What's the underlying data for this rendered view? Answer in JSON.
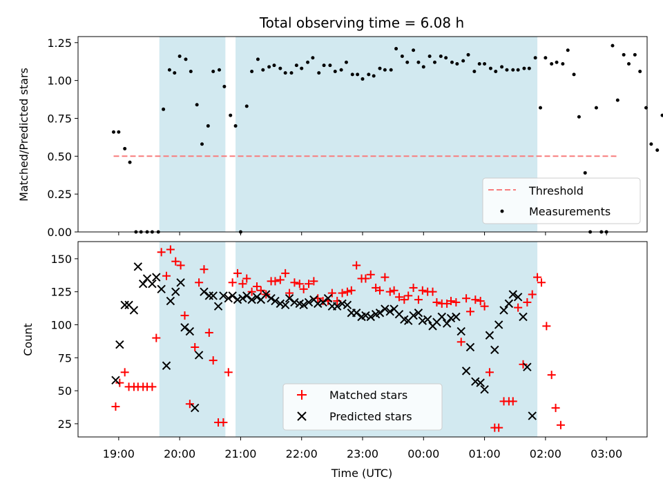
{
  "title": "Total observing time = 6.08 h",
  "chart_data": [
    {
      "type": "scatter",
      "ylabel": "Matched/Predicted stars",
      "ylim": [
        0,
        1.29
      ],
      "yticks": [
        "0.00",
        "0.25",
        "0.50",
        "0.75",
        "1.00",
        "1.25"
      ],
      "threshold": {
        "name": "Threshold",
        "value": 0.5,
        "x_start": "18:55",
        "x_end": "03:10",
        "color": "#f87c7c"
      },
      "measurements": {
        "name": "Measurements",
        "color": "#000000",
        "points": [
          [
            "18:55",
            0.66
          ],
          [
            "19:00",
            0.66
          ],
          [
            "19:06",
            0.55
          ],
          [
            "19:11",
            0.46
          ],
          [
            "19:17",
            0.0
          ],
          [
            "19:22",
            0.0
          ],
          [
            "19:28",
            0.0
          ],
          [
            "19:33",
            0.0
          ],
          [
            "19:39",
            0.0
          ],
          [
            "19:44",
            0.81
          ],
          [
            "19:50",
            1.07
          ],
          [
            "19:55",
            1.05
          ],
          [
            "20:00",
            1.16
          ],
          [
            "20:06",
            1.14
          ],
          [
            "20:11",
            1.06
          ],
          [
            "20:17",
            0.84
          ],
          [
            "20:22",
            0.58
          ],
          [
            "20:28",
            0.7
          ],
          [
            "20:33",
            1.06
          ],
          [
            "20:39",
            1.07
          ],
          [
            "20:44",
            0.96
          ],
          [
            "20:50",
            0.77
          ],
          [
            "20:55",
            0.7
          ],
          [
            "21:00",
            0.0
          ],
          [
            "21:06",
            0.83
          ],
          [
            "21:11",
            1.06
          ],
          [
            "21:17",
            1.14
          ],
          [
            "21:22",
            1.07
          ],
          [
            "21:28",
            1.09
          ],
          [
            "21:33",
            1.1
          ],
          [
            "21:39",
            1.08
          ],
          [
            "21:44",
            1.05
          ],
          [
            "21:50",
            1.05
          ],
          [
            "21:55",
            1.1
          ],
          [
            "22:00",
            1.08
          ],
          [
            "22:06",
            1.12
          ],
          [
            "22:11",
            1.15
          ],
          [
            "22:17",
            1.05
          ],
          [
            "22:22",
            1.1
          ],
          [
            "22:28",
            1.1
          ],
          [
            "22:33",
            1.06
          ],
          [
            "22:39",
            1.07
          ],
          [
            "22:44",
            1.12
          ],
          [
            "22:50",
            1.04
          ],
          [
            "22:55",
            1.04
          ],
          [
            "23:00",
            1.01
          ],
          [
            "23:06",
            1.04
          ],
          [
            "23:11",
            1.03
          ],
          [
            "23:17",
            1.08
          ],
          [
            "23:22",
            1.07
          ],
          [
            "23:28",
            1.07
          ],
          [
            "23:33",
            1.21
          ],
          [
            "23:39",
            1.16
          ],
          [
            "23:44",
            1.12
          ],
          [
            "23:50",
            1.2
          ],
          [
            "23:55",
            1.12
          ],
          [
            "00:00",
            1.09
          ],
          [
            "00:06",
            1.16
          ],
          [
            "00:11",
            1.12
          ],
          [
            "00:17",
            1.16
          ],
          [
            "00:22",
            1.15
          ],
          [
            "00:28",
            1.12
          ],
          [
            "00:33",
            1.11
          ],
          [
            "00:39",
            1.13
          ],
          [
            "00:44",
            1.17
          ],
          [
            "00:50",
            1.06
          ],
          [
            "00:55",
            1.11
          ],
          [
            "01:00",
            1.11
          ],
          [
            "01:06",
            1.08
          ],
          [
            "01:11",
            1.06
          ],
          [
            "01:17",
            1.09
          ],
          [
            "01:22",
            1.07
          ],
          [
            "01:28",
            1.07
          ],
          [
            "01:33",
            1.07
          ],
          [
            "01:39",
            1.08
          ],
          [
            "01:44",
            1.08
          ],
          [
            "01:50",
            1.15
          ],
          [
            "01:55",
            0.82
          ],
          [
            "02:00",
            1.15
          ],
          [
            "02:06",
            1.11
          ],
          [
            "02:11",
            1.12
          ],
          [
            "02:17",
            1.11
          ],
          [
            "02:22",
            1.2
          ],
          [
            "02:28",
            1.04
          ],
          [
            "02:33",
            0.76
          ],
          [
            "02:39",
            0.39
          ],
          [
            "02:44",
            0.0
          ],
          [
            "02:50",
            0.82
          ],
          [
            "02:55",
            0.0
          ],
          [
            "03:00",
            0.0
          ],
          [
            "03:06",
            1.23
          ],
          [
            "03:11",
            0.87
          ],
          [
            "03:17",
            1.17
          ],
          [
            "03:22",
            1.11
          ],
          [
            "03:28",
            1.17
          ],
          [
            "03:33",
            1.06
          ],
          [
            "03:39",
            0.82
          ],
          [
            "03:44",
            0.58
          ],
          [
            "03:50",
            0.54
          ],
          [
            "03:55",
            0.77
          ]
        ]
      },
      "legend": {
        "placement": "lower right",
        "entries": [
          "Threshold",
          "Measurements"
        ]
      }
    },
    {
      "type": "scatter",
      "xlabel": "Time (UTC)",
      "ylabel": "Count",
      "ylim": [
        15,
        163
      ],
      "yticks": [
        "25",
        "50",
        "75",
        "100",
        "125",
        "150"
      ],
      "xticks": [
        "19:00",
        "20:00",
        "21:00",
        "22:00",
        "23:00",
        "00:00",
        "01:00",
        "02:00",
        "03:00"
      ],
      "series": [
        {
          "name": "Matched stars",
          "marker": "plus",
          "color": "#ff0000",
          "values": [
            38,
            56,
            64,
            53,
            53,
            53,
            53,
            53,
            53,
            90,
            155,
            137,
            157,
            148,
            145,
            107,
            40,
            83,
            132,
            142,
            94,
            73,
            26,
            26,
            64,
            132,
            139,
            131,
            135,
            125,
            129,
            126,
            123,
            133,
            133,
            134,
            139,
            124,
            132,
            131,
            127,
            131,
            133,
            120,
            118,
            118,
            124,
            118,
            124,
            125,
            126,
            145,
            135,
            135,
            138,
            128,
            126,
            136,
            125,
            126,
            121,
            119,
            122,
            128,
            119,
            126,
            125,
            125,
            117,
            116,
            116,
            118,
            117,
            87,
            120,
            110,
            119,
            118,
            114,
            64,
            22,
            22,
            42,
            42,
            42,
            113,
            70,
            117,
            123,
            136,
            132,
            99,
            62,
            37,
            24
          ]
        },
        {
          "name": "Predicted stars",
          "marker": "x",
          "color": "#000000",
          "values": [
            58,
            85,
            115,
            115,
            111,
            144,
            131,
            135,
            131,
            136,
            127,
            69,
            118,
            125,
            132,
            98,
            95,
            37,
            77,
            125,
            122,
            122,
            114,
            122,
            120,
            122,
            119,
            120,
            122,
            119,
            121,
            119,
            123,
            120,
            118,
            116,
            115,
            120,
            117,
            116,
            115,
            117,
            119,
            116,
            117,
            120,
            114,
            114,
            116,
            115,
            109,
            109,
            106,
            107,
            106,
            108,
            109,
            112,
            110,
            112,
            108,
            104,
            103,
            107,
            109,
            103,
            104,
            99,
            102,
            106,
            101,
            105,
            106,
            95,
            65,
            83,
            57,
            56,
            51,
            92,
            81,
            100,
            111,
            116,
            123,
            121,
            106,
            68,
            31
          ]
        }
      ],
      "series_x": [
        [
          "18:57",
          "19:01",
          "19:06",
          "19:10",
          "19:15",
          "19:19",
          "19:24",
          "19:28",
          "19:33",
          "19:37",
          "19:42",
          "19:47",
          "19:51",
          "19:56",
          "20:01",
          "20:05",
          "20:10",
          "20:15",
          "20:19",
          "20:24",
          "20:29",
          "20:33",
          "20:38",
          "20:43",
          "20:48",
          "20:52",
          "20:57",
          "21:02",
          "21:06",
          "21:11",
          "21:16",
          "21:20",
          "21:25",
          "21:30",
          "21:34",
          "21:39",
          "21:44",
          "21:48",
          "21:53",
          "21:58",
          "22:02",
          "22:07",
          "22:12",
          "22:16",
          "22:21",
          "22:26",
          "22:30",
          "22:35",
          "22:40",
          "22:45",
          "22:49",
          "22:54",
          "22:59",
          "23:03",
          "23:08",
          "23:13",
          "23:17",
          "23:22",
          "23:27",
          "23:31",
          "23:36",
          "23:41",
          "23:45",
          "23:50",
          "23:55",
          "23:59",
          "00:04",
          "00:09",
          "00:13",
          "00:18",
          "00:23",
          "00:27",
          "00:32",
          "00:37",
          "00:42",
          "00:46",
          "00:51",
          "00:56",
          "01:00",
          "01:05",
          "01:10",
          "01:14",
          "01:19",
          "01:24",
          "01:28",
          "01:33",
          "01:38",
          "01:42",
          "01:47",
          "01:52",
          "01:56",
          "02:01",
          "02:06",
          "02:10",
          "02:15"
        ],
        [
          "18:57",
          "19:01",
          "19:06",
          "19:10",
          "19:15",
          "19:19",
          "19:24",
          "19:28",
          "19:33",
          "19:37",
          "19:42",
          "19:47",
          "19:51",
          "19:56",
          "20:01",
          "20:05",
          "20:10",
          "20:15",
          "20:19",
          "20:24",
          "20:29",
          "20:33",
          "20:38",
          "20:43",
          "20:48",
          "20:52",
          "20:57",
          "21:02",
          "21:06",
          "21:11",
          "21:16",
          "21:20",
          "21:25",
          "21:30",
          "21:34",
          "21:39",
          "21:44",
          "21:48",
          "21:53",
          "21:58",
          "22:02",
          "22:07",
          "22:12",
          "22:16",
          "22:21",
          "22:26",
          "22:30",
          "22:35",
          "22:40",
          "22:45",
          "22:49",
          "22:54",
          "22:59",
          "23:03",
          "23:08",
          "23:13",
          "23:17",
          "23:22",
          "23:27",
          "23:31",
          "23:36",
          "23:41",
          "23:45",
          "23:50",
          "23:55",
          "23:59",
          "00:04",
          "00:09",
          "00:13",
          "00:18",
          "00:23",
          "00:27",
          "00:32",
          "00:37",
          "00:42",
          "00:46",
          "00:51",
          "00:56",
          "01:00",
          "01:05",
          "01:10",
          "01:14",
          "01:19",
          "01:24",
          "01:28",
          "01:33",
          "01:38",
          "01:42",
          "01:47"
        ]
      ],
      "legend": {
        "placement": "lower center",
        "entries": [
          "Matched stars",
          "Predicted stars"
        ]
      }
    }
  ],
  "shaded_intervals": [
    [
      "19:40",
      "20:45"
    ],
    [
      "20:55",
      "01:52"
    ]
  ],
  "shade_color": "#d2e9f0",
  "x_range": [
    "18:20",
    "03:40"
  ]
}
